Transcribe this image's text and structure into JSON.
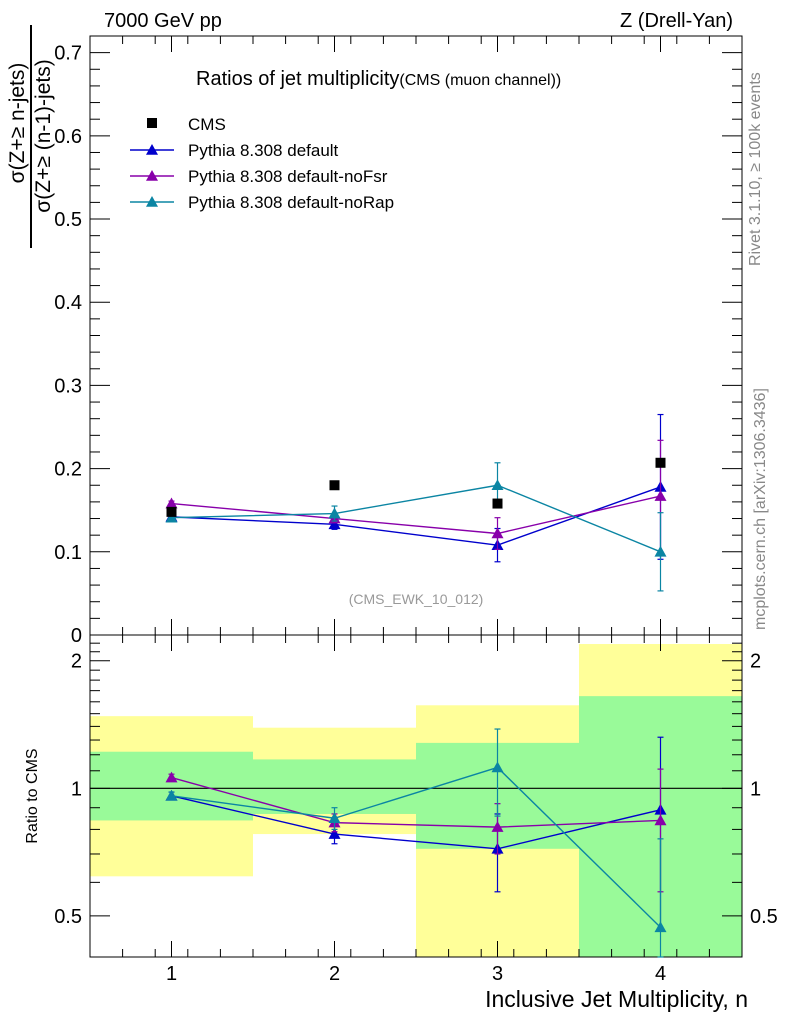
{
  "header": {
    "left": "7000 GeV pp",
    "right": "Z (Drell-Yan)"
  },
  "side_labels": {
    "rivet": "Rivet 3.1.10, ≥ 100k events",
    "mcplots": "mcplots.cern.ch [arXiv:1306.3436]"
  },
  "chart_data": {
    "type": "scatter",
    "title": "Ratios of jet multiplicity",
    "subtitle": "(CMS (muon channel))",
    "watermark": "(CMS_EWK_10_012)",
    "xlabel": "Inclusive Jet Multiplicity, n",
    "ylabel_top": "σ(Z+≥ n-jets)",
    "ylabel_bottom": "σ(Z+≥ (n-1)-jets)",
    "ratio_ylabel": "Ratio to CMS",
    "x": [
      1,
      2,
      3,
      4
    ],
    "xlim": [
      0.5,
      4.5
    ],
    "ylim": [
      0,
      0.72
    ],
    "ratio_ylim": [
      0.4,
      2.3
    ],
    "ratio_log_scale": true,
    "x_ticks": [
      "1",
      "2",
      "3",
      "4"
    ],
    "y_ticks": [
      "0",
      "0.1",
      "0.2",
      "0.3",
      "0.4",
      "0.5",
      "0.6",
      "0.7"
    ],
    "ratio_y_ticks": [
      "0.5",
      "1",
      "2"
    ],
    "legend_position": "top-left",
    "data": {
      "name": "CMS",
      "color": "#000000",
      "values": [
        0.148,
        0.18,
        0.158,
        0.207
      ]
    },
    "series": [
      {
        "name": "Pythia 8.308 default",
        "color": "#0000cc",
        "values": [
          0.142,
          0.133,
          0.108,
          0.178
        ],
        "errors": [
          0.003,
          0.006,
          0.02,
          0.087
        ],
        "ratio": [
          0.96,
          0.78,
          0.72,
          0.89
        ],
        "ratio_errors": [
          0.02,
          0.04,
          0.15,
          0.43
        ]
      },
      {
        "name": "Pythia 8.308 default-noFsr",
        "color": "#8800aa",
        "values": [
          0.158,
          0.14,
          0.122,
          0.167
        ],
        "errors": [
          0.003,
          0.005,
          0.019,
          0.067
        ],
        "ratio": [
          1.06,
          0.83,
          0.81,
          0.84
        ],
        "ratio_errors": [
          0.02,
          0.04,
          0.11,
          0.27
        ]
      },
      {
        "name": "Pythia 8.308 default-noRap",
        "color": "#0b85a3",
        "values": [
          0.141,
          0.146,
          0.18,
          0.1
        ],
        "errors": [
          0.003,
          0.009,
          0.027,
          0.047
        ],
        "ratio": [
          0.96,
          0.85,
          1.12,
          0.47
        ],
        "ratio_errors": [
          0.02,
          0.05,
          0.26,
          0.29
        ]
      }
    ],
    "uncertainty_bands": {
      "inner_color": "#99fa99",
      "outer_color": "#ffff99",
      "inner": [
        [
          0.84,
          1.22
        ],
        [
          0.87,
          1.17
        ],
        [
          0.72,
          1.28
        ],
        [
          0.39,
          1.65
        ]
      ],
      "outer": [
        [
          0.62,
          1.48
        ],
        [
          0.78,
          1.39
        ],
        [
          0.3,
          1.57
        ],
        [
          0.3,
          2.19
        ]
      ]
    }
  }
}
